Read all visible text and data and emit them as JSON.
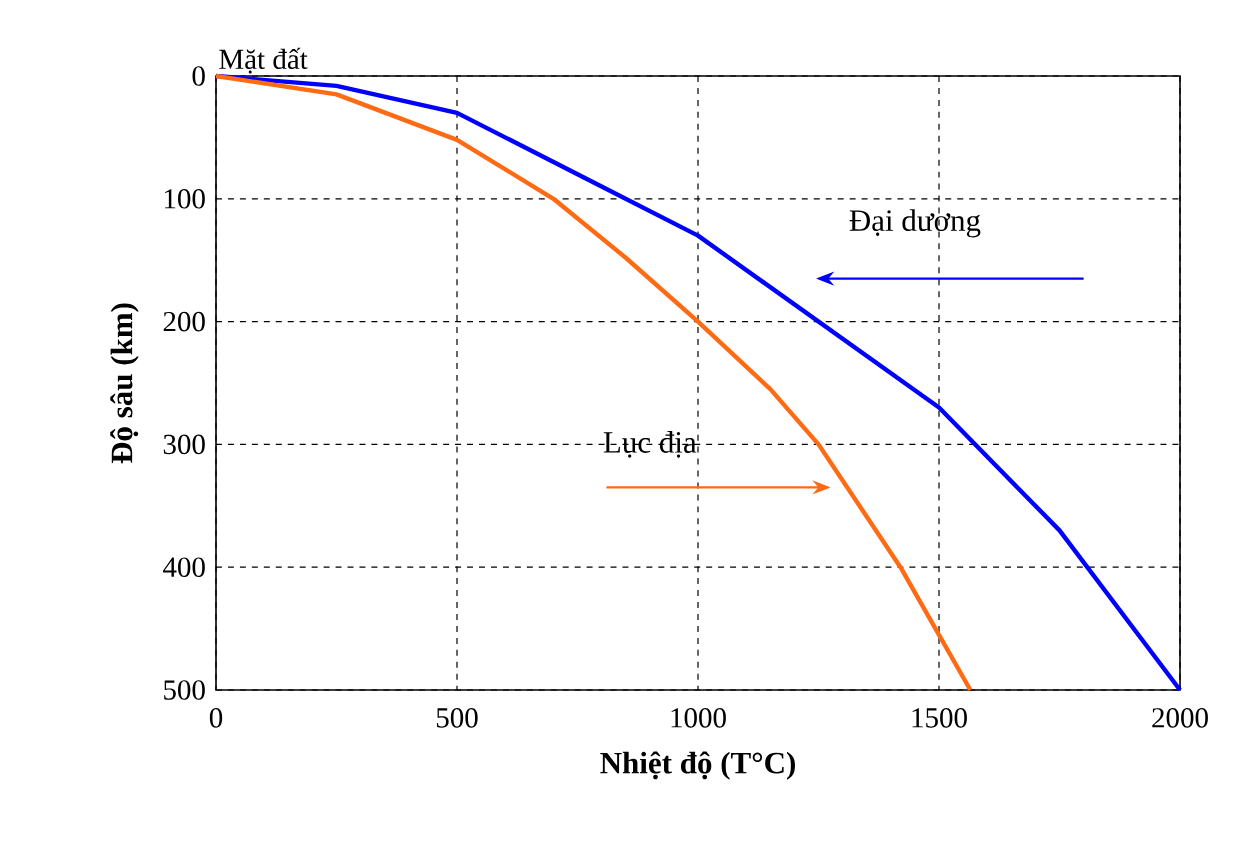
{
  "chart_data": {
    "type": "line",
    "xlabel": "Nhiệt độ (T°C)",
    "ylabel": "Độ sâu (km)",
    "xlim": [
      0,
      2000
    ],
    "ylim": [
      500,
      0
    ],
    "xticks": [
      0,
      500,
      1000,
      1500,
      2000
    ],
    "yticks": [
      0,
      100,
      200,
      300,
      400,
      500
    ],
    "grid": true,
    "annotations": [
      "Mặt đất"
    ],
    "series": [
      {
        "name": "Đại dương",
        "color": "#0000ff",
        "x": [
          0,
          250,
          500,
          750,
          1000,
          1250,
          1500,
          1750,
          2000
        ],
        "values": [
          0,
          8,
          30,
          80,
          130,
          200,
          270,
          370,
          500
        ]
      },
      {
        "name": "Lục địa",
        "color": "#ff6a13",
        "x": [
          0,
          250,
          500,
          700,
          850,
          1000,
          1150,
          1250,
          1420,
          1565
        ],
        "values": [
          0,
          15,
          52,
          100,
          148,
          200,
          255,
          300,
          400,
          500
        ]
      }
    ]
  }
}
